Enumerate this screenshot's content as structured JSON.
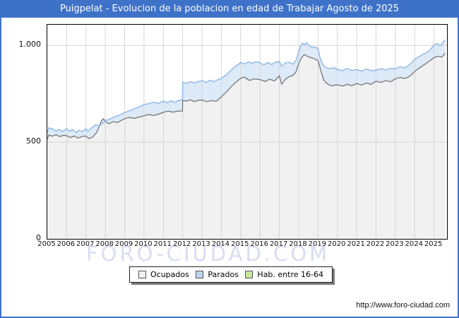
{
  "window": {
    "title": "Puigpelat - Evolucion de la poblacion en edad de Trabajar Agosto de 2025"
  },
  "colors": {
    "header_bg": "#3e72c9",
    "frame_border": "#3e72c9",
    "plot_border": "#000000",
    "grid": "#d6d6d6",
    "watermark": "#d9ddf2"
  },
  "watermark_text": "FORO-CIUDAD.COM",
  "footer": {
    "url": "http://www.foro-ciudad.com"
  },
  "legend": {
    "items": [
      {
        "label": "Ocupados",
        "swatch": "#f2f2f2"
      },
      {
        "label": "Parados",
        "swatch": "#bdd7f2"
      },
      {
        "label": "Hab. entre 16-64",
        "swatch": "#c7e69b"
      }
    ]
  },
  "chart_data": {
    "type": "area",
    "title": "Puigpelat - Evolucion de la poblacion en edad de Trabajar Agosto de 2025",
    "xlabel": "",
    "ylabel": "",
    "x_range": [
      2005,
      2025.67
    ],
    "y_range": [
      0,
      1107
    ],
    "grid": true,
    "legend_position": "bottom",
    "x_ticks": [
      "2005",
      "2006",
      "2007",
      "2008",
      "2009",
      "2010",
      "2011",
      "2012",
      "2013",
      "2014",
      "2015",
      "2016",
      "2017",
      "2018",
      "2019",
      "2020",
      "2021",
      "2022",
      "2023",
      "2024",
      "2025"
    ],
    "y_ticks": [
      {
        "value": 0,
        "label": "0"
      },
      {
        "value": 500,
        "label": "500"
      },
      {
        "value": 1000,
        "label": "1.000"
      }
    ],
    "stacking_note": "Parados points give the top boundary of the stacked band (Ocupados + Parados); gray Ocupados area fills to zero",
    "series": [
      {
        "name": "Ocupados",
        "line_color": "#6e6e6e",
        "fill_color": "#f1f1f1",
        "points": [
          [
            2005.0,
            516
          ],
          [
            2005.08,
            537
          ],
          [
            2005.25,
            531
          ],
          [
            2005.45,
            538
          ],
          [
            2005.65,
            529
          ],
          [
            2005.85,
            536
          ],
          [
            2006.0,
            533
          ],
          [
            2006.2,
            524
          ],
          [
            2006.4,
            532
          ],
          [
            2006.6,
            521
          ],
          [
            2006.8,
            530
          ],
          [
            2007.0,
            531
          ],
          [
            2007.15,
            518
          ],
          [
            2007.35,
            527
          ],
          [
            2007.55,
            549
          ],
          [
            2007.7,
            585
          ],
          [
            2007.8,
            610
          ],
          [
            2007.9,
            621
          ],
          [
            2008.05,
            603
          ],
          [
            2008.2,
            595
          ],
          [
            2008.4,
            606
          ],
          [
            2008.6,
            601
          ],
          [
            2008.8,
            611
          ],
          [
            2009.0,
            621
          ],
          [
            2009.25,
            628
          ],
          [
            2009.5,
            623
          ],
          [
            2009.75,
            630
          ],
          [
            2010.0,
            636
          ],
          [
            2010.25,
            643
          ],
          [
            2010.5,
            638
          ],
          [
            2010.75,
            645
          ],
          [
            2011.0,
            654
          ],
          [
            2011.25,
            660
          ],
          [
            2011.5,
            655
          ],
          [
            2011.75,
            661
          ],
          [
            2011.99,
            660
          ],
          [
            2012.0,
            716
          ],
          [
            2012.2,
            712
          ],
          [
            2012.4,
            719
          ],
          [
            2012.6,
            710
          ],
          [
            2012.8,
            716
          ],
          [
            2013.0,
            718
          ],
          [
            2013.25,
            709
          ],
          [
            2013.5,
            715
          ],
          [
            2013.75,
            711
          ],
          [
            2014.0,
            734
          ],
          [
            2014.25,
            758
          ],
          [
            2014.5,
            786
          ],
          [
            2014.75,
            810
          ],
          [
            2015.0,
            830
          ],
          [
            2015.2,
            836
          ],
          [
            2015.45,
            819
          ],
          [
            2015.7,
            827
          ],
          [
            2016.0,
            823
          ],
          [
            2016.25,
            814
          ],
          [
            2016.5,
            825
          ],
          [
            2016.75,
            817
          ],
          [
            2017.0,
            843
          ],
          [
            2017.12,
            799
          ],
          [
            2017.3,
            824
          ],
          [
            2017.5,
            838
          ],
          [
            2017.7,
            845
          ],
          [
            2017.85,
            862
          ],
          [
            2018.0,
            905
          ],
          [
            2018.15,
            938
          ],
          [
            2018.3,
            953
          ],
          [
            2018.45,
            944
          ],
          [
            2018.6,
            938
          ],
          [
            2018.8,
            932
          ],
          [
            2019.0,
            921
          ],
          [
            2019.15,
            868
          ],
          [
            2019.3,
            820
          ],
          [
            2019.5,
            800
          ],
          [
            2019.7,
            791
          ],
          [
            2020.0,
            797
          ],
          [
            2020.25,
            789
          ],
          [
            2020.5,
            799
          ],
          [
            2020.75,
            792
          ],
          [
            2021.0,
            803
          ],
          [
            2021.25,
            795
          ],
          [
            2021.5,
            806
          ],
          [
            2021.75,
            799
          ],
          [
            2022.0,
            815
          ],
          [
            2022.25,
            809
          ],
          [
            2022.5,
            818
          ],
          [
            2022.75,
            812
          ],
          [
            2023.0,
            827
          ],
          [
            2023.25,
            834
          ],
          [
            2023.5,
            829
          ],
          [
            2023.75,
            841
          ],
          [
            2024.0,
            865
          ],
          [
            2024.25,
            884
          ],
          [
            2024.5,
            901
          ],
          [
            2024.75,
            918
          ],
          [
            2025.0,
            937
          ],
          [
            2025.2,
            944
          ],
          [
            2025.4,
            940
          ],
          [
            2025.58,
            960
          ]
        ]
      },
      {
        "name": "Parados",
        "line_color": "#94b9e6",
        "fill_color": "#ddeaf8",
        "stacked_on": "Ocupados",
        "points": [
          [
            2005.0,
            548
          ],
          [
            2005.08,
            574
          ],
          [
            2005.3,
            568
          ],
          [
            2005.45,
            556
          ],
          [
            2005.6,
            566
          ],
          [
            2005.8,
            555
          ],
          [
            2006.0,
            570
          ],
          [
            2006.15,
            556
          ],
          [
            2006.3,
            566
          ],
          [
            2006.5,
            549
          ],
          [
            2006.65,
            562
          ],
          [
            2006.8,
            553
          ],
          [
            2007.0,
            570
          ],
          [
            2007.1,
            557
          ],
          [
            2007.25,
            571
          ],
          [
            2007.5,
            590
          ],
          [
            2007.7,
            584
          ],
          [
            2007.9,
            600
          ],
          [
            2008.0,
            612
          ],
          [
            2008.25,
            620
          ],
          [
            2008.5,
            632
          ],
          [
            2008.75,
            641
          ],
          [
            2009.0,
            653
          ],
          [
            2009.3,
            664
          ],
          [
            2009.6,
            677
          ],
          [
            2009.8,
            684
          ],
          [
            2010.0,
            694
          ],
          [
            2010.25,
            699
          ],
          [
            2010.5,
            707
          ],
          [
            2010.75,
            700
          ],
          [
            2011.0,
            713
          ],
          [
            2011.2,
            704
          ],
          [
            2011.4,
            714
          ],
          [
            2011.6,
            706
          ],
          [
            2011.8,
            716
          ],
          [
            2011.99,
            718
          ],
          [
            2012.0,
            810
          ],
          [
            2012.2,
            804
          ],
          [
            2012.4,
            812
          ],
          [
            2012.6,
            806
          ],
          [
            2012.8,
            813
          ],
          [
            2013.0,
            818
          ],
          [
            2013.2,
            809
          ],
          [
            2013.4,
            820
          ],
          [
            2013.6,
            813
          ],
          [
            2013.8,
            822
          ],
          [
            2014.0,
            830
          ],
          [
            2014.25,
            848
          ],
          [
            2014.5,
            872
          ],
          [
            2014.75,
            893
          ],
          [
            2015.0,
            912
          ],
          [
            2015.2,
            904
          ],
          [
            2015.4,
            915
          ],
          [
            2015.6,
            907
          ],
          [
            2015.8,
            916
          ],
          [
            2016.0,
            910
          ],
          [
            2016.2,
            899
          ],
          [
            2016.4,
            912
          ],
          [
            2016.6,
            901
          ],
          [
            2016.8,
            913
          ],
          [
            2017.0,
            917
          ],
          [
            2017.12,
            891
          ],
          [
            2017.3,
            909
          ],
          [
            2017.5,
            913
          ],
          [
            2017.7,
            904
          ],
          [
            2017.85,
            920
          ],
          [
            2018.0,
            965
          ],
          [
            2018.1,
            1000
          ],
          [
            2018.2,
            1012
          ],
          [
            2018.3,
            1001
          ],
          [
            2018.4,
            1014
          ],
          [
            2018.55,
            998
          ],
          [
            2018.7,
            990
          ],
          [
            2018.85,
            992
          ],
          [
            2019.0,
            984
          ],
          [
            2019.1,
            938
          ],
          [
            2019.25,
            902
          ],
          [
            2019.4,
            886
          ],
          [
            2019.6,
            880
          ],
          [
            2019.8,
            885
          ],
          [
            2020.0,
            877
          ],
          [
            2020.25,
            869
          ],
          [
            2020.5,
            880
          ],
          [
            2020.75,
            871
          ],
          [
            2021.0,
            876
          ],
          [
            2021.25,
            867
          ],
          [
            2021.5,
            878
          ],
          [
            2021.75,
            870
          ],
          [
            2022.0,
            872
          ],
          [
            2022.25,
            880
          ],
          [
            2022.5,
            873
          ],
          [
            2022.75,
            882
          ],
          [
            2023.0,
            879
          ],
          [
            2023.25,
            890
          ],
          [
            2023.5,
            884
          ],
          [
            2023.75,
            902
          ],
          [
            2024.0,
            928
          ],
          [
            2024.25,
            944
          ],
          [
            2024.5,
            957
          ],
          [
            2024.75,
            972
          ],
          [
            2025.0,
            1003
          ],
          [
            2025.15,
            1010
          ],
          [
            2025.3,
            998
          ],
          [
            2025.45,
            1012
          ],
          [
            2025.58,
            1030
          ]
        ]
      }
    ]
  }
}
